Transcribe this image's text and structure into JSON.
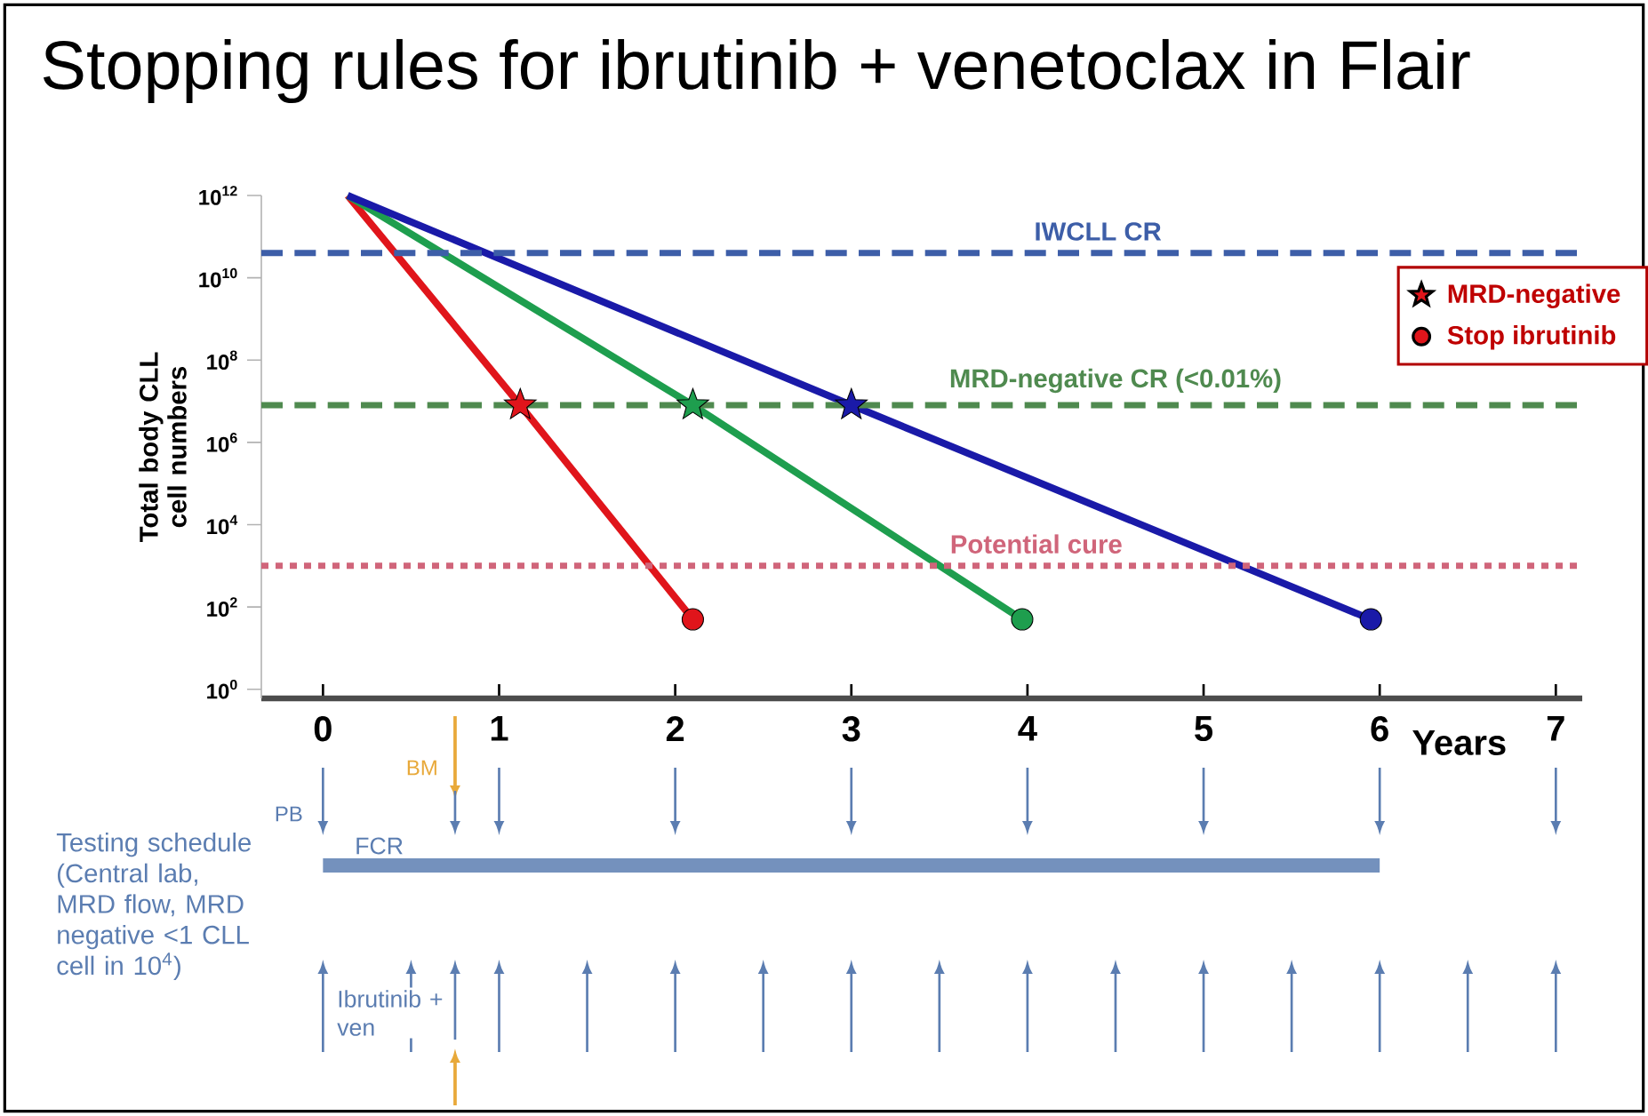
{
  "chart_data": {
    "type": "line",
    "title": "Stopping rules for ibrutinib + venetoclax in Flair",
    "xlabel": "Years",
    "ylabel": "Total body CLL cell numbers",
    "log": "y",
    "xlim": [
      -0.35,
      7.15
    ],
    "xticks": [
      0,
      1,
      2,
      3,
      4,
      5,
      6,
      7
    ],
    "ylim": [
      0.6,
      1000000000000.0
    ],
    "yticks": [
      {
        "value": 1,
        "label": "10$^{0}$"
      },
      {
        "value": 100,
        "label": "10$^{2}$"
      },
      {
        "value": 10000,
        "label": "10$^{4}$"
      },
      {
        "value": 1000000,
        "label": "10$^{6}$"
      },
      {
        "value": 100000000,
        "label": "10$^{8}$"
      },
      {
        "value": 10000000000,
        "label": "10$^{10}$"
      },
      {
        "value": 1000000000000,
        "label": "10$^{12}$"
      }
    ],
    "grid": false,
    "legend": "top right",
    "series": [
      {
        "type": "line",
        "color": "#e0151b",
        "marker": "none",
        "x": [
          0.14,
          1.12,
          2.1
        ],
        "values": [
          1000000000000.0,
          8000000.0,
          50
        ]
      },
      {
        "type": "line",
        "color": "#1e9e4e",
        "marker": "none",
        "x": [
          0.14,
          2.1,
          3.97
        ],
        "values": [
          1000000000000.0,
          8000000.0,
          50
        ]
      },
      {
        "type": "line",
        "color": "#1a1aa8",
        "marker": "none",
        "x": [
          0.14,
          3.0,
          5.95
        ],
        "values": [
          1000000000000.0,
          8000000.0,
          50
        ]
      },
      {
        "type": "scatter",
        "name": "MRD-negative",
        "marker": "star",
        "color": "#e0151b",
        "colors": [
          "#e0151b",
          "#1e9e4e",
          "#1a1aa8"
        ],
        "x": [
          1.12,
          2.1,
          3.0
        ],
        "values": [
          8000000.0,
          8000000.0,
          8000000.0
        ]
      },
      {
        "type": "scatter",
        "name": "Stop ibrutinib",
        "marker": "circle",
        "color": "#e0151b",
        "colors": [
          "#e0151b",
          "#1e9e4e",
          "#1a1aa8"
        ],
        "x": [
          2.1,
          3.97,
          5.95
        ],
        "values": [
          50,
          50,
          50
        ]
      }
    ],
    "ref_lines": [
      {
        "axis": "y",
        "value": 40000000000.0,
        "label": "IWCLL CR",
        "color": "#3d5ea8",
        "line_style": "dashed"
      },
      {
        "axis": "y",
        "value": 8000000.0,
        "label": "MRD-negative CR (<0.01%)",
        "color": "#4f8a4f",
        "line_style": "dashed"
      },
      {
        "axis": "y",
        "value": 1000,
        "label": "Potential cure",
        "color": "#d0657a",
        "line_style": "dotted"
      }
    ],
    "annotations": [
      "Testing schedule (Central lab, MRD flow, MRD negative <1 CLL cell in 10$^{4}$)",
      "PB",
      "BM",
      "FCR",
      "Ibrutinib + ven"
    ]
  }
}
